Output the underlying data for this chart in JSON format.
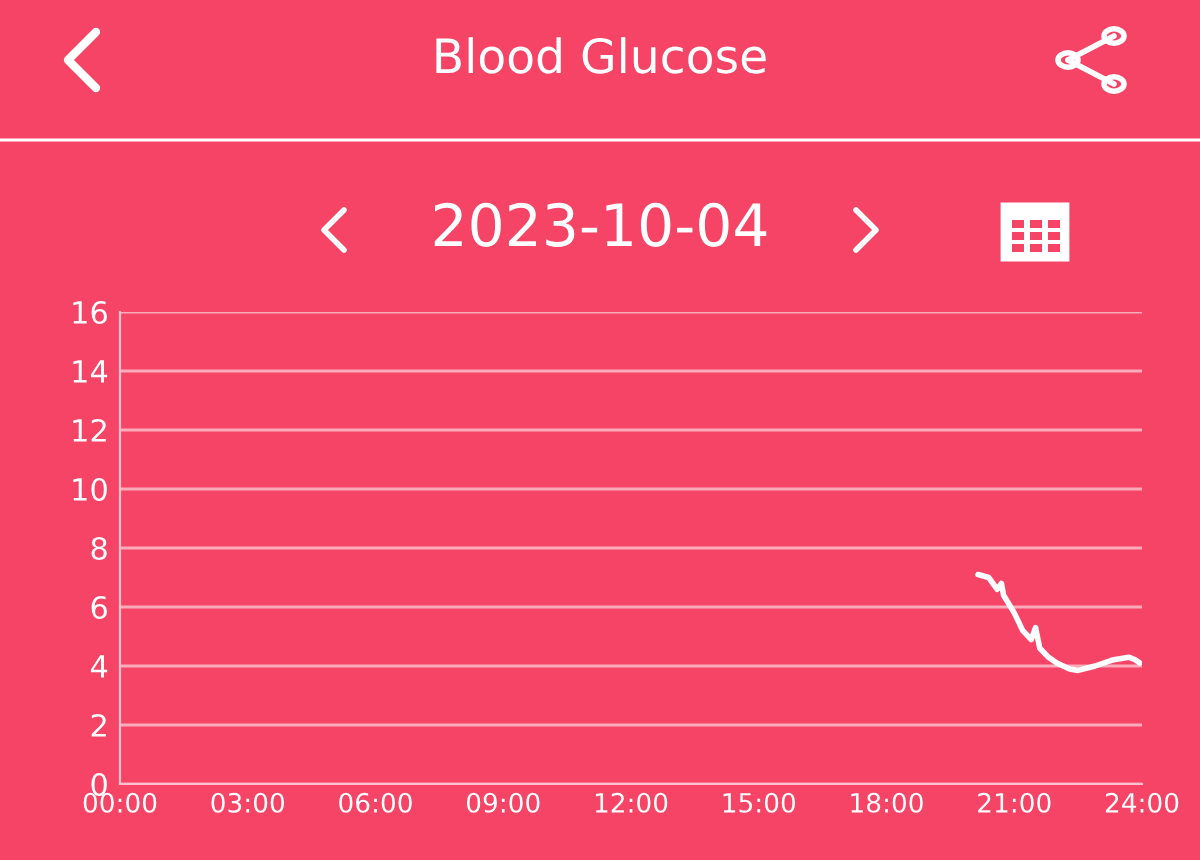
{
  "chart_data": {
    "type": "line",
    "title": "Blood Glucose",
    "subtitle": "2023-10-04",
    "xlim": [
      0,
      24
    ],
    "xticks": [
      {
        "value": 0,
        "label": "00:00"
      },
      {
        "value": 3,
        "label": "03:00"
      },
      {
        "value": 6,
        "label": "06:00"
      },
      {
        "value": 9,
        "label": "09:00"
      },
      {
        "value": 12,
        "label": "12:00"
      },
      {
        "value": 15,
        "label": "15:00"
      },
      {
        "value": 18,
        "label": "18:00"
      },
      {
        "value": 21,
        "label": "21:00"
      },
      {
        "value": 24,
        "label": "24:00"
      }
    ],
    "ylim": [
      0,
      16
    ],
    "yticks": [
      0,
      2,
      4,
      6,
      8,
      10,
      12,
      14,
      16
    ],
    "grid": "y",
    "series": [
      {
        "color": "#ffffff",
        "x": [
          20.15,
          20.4,
          20.6,
          20.7,
          20.75,
          21.0,
          21.2,
          21.4,
          21.5,
          21.6,
          21.8,
          22.0,
          22.3,
          22.5,
          22.9,
          23.3,
          23.7,
          23.85,
          23.95
        ],
        "values": [
          7.1,
          7.0,
          6.6,
          6.8,
          6.4,
          5.8,
          5.2,
          4.9,
          5.3,
          4.6,
          4.3,
          4.1,
          3.9,
          3.85,
          4.0,
          4.2,
          4.3,
          4.2,
          4.1
        ]
      }
    ]
  }
}
